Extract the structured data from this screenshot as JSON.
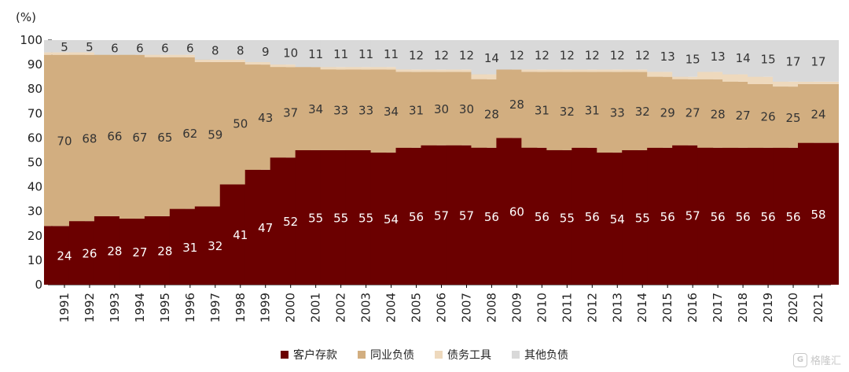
{
  "chart_data": {
    "type": "bar",
    "stacked": true,
    "ylabel": "(%)",
    "ylim": [
      0,
      100
    ],
    "yticks": [
      0,
      10,
      20,
      30,
      40,
      50,
      60,
      70,
      80,
      90,
      100
    ],
    "categories": [
      "1991",
      "1992",
      "1993",
      "1994",
      "1995",
      "1996",
      "1997",
      "1998",
      "1999",
      "2000",
      "2001",
      "2002",
      "2003",
      "2004",
      "2005",
      "2006",
      "2007",
      "2008",
      "2009",
      "2010",
      "2011",
      "2012",
      "2013",
      "2014",
      "2015",
      "2016",
      "2017",
      "2018",
      "2019",
      "2020",
      "2021"
    ],
    "series": [
      {
        "name": "客户存款",
        "color": "#6b0000",
        "label_color": "#ffffff",
        "values": [
          24,
          26,
          28,
          27,
          28,
          31,
          32,
          41,
          47,
          52,
          55,
          55,
          55,
          54,
          56,
          57,
          57,
          56,
          60,
          56,
          55,
          56,
          54,
          55,
          56,
          57,
          56,
          56,
          56,
          56,
          58
        ]
      },
      {
        "name": "同业负债",
        "color": "#d2ae80",
        "label_color": "#333333",
        "values": [
          70,
          68,
          66,
          67,
          65,
          62,
          59,
          50,
          43,
          37,
          34,
          33,
          33,
          34,
          31,
          30,
          30,
          28,
          28,
          31,
          32,
          31,
          33,
          32,
          29,
          27,
          28,
          27,
          26,
          25,
          24
        ]
      },
      {
        "name": "债务工具",
        "color": "#eed9bd",
        "label_color": "#333333",
        "values": [
          1,
          1,
          0,
          0,
          1,
          1,
          1,
          1,
          1,
          1,
          0,
          1,
          1,
          1,
          1,
          1,
          1,
          2,
          0,
          1,
          1,
          1,
          1,
          1,
          2,
          1,
          3,
          3,
          3,
          2,
          1
        ]
      },
      {
        "name": "其他负债",
        "color": "#d9d9d9",
        "label_color": "#333333",
        "values": [
          5,
          5,
          6,
          6,
          6,
          6,
          8,
          8,
          9,
          10,
          11,
          11,
          11,
          11,
          12,
          12,
          12,
          14,
          12,
          12,
          12,
          12,
          12,
          12,
          13,
          15,
          13,
          14,
          15,
          17,
          17
        ]
      }
    ],
    "labeled_series": [
      0,
      1,
      3
    ],
    "legend_position": "bottom",
    "grid": false
  },
  "watermark": {
    "logo": "G",
    "text": "格隆汇"
  }
}
